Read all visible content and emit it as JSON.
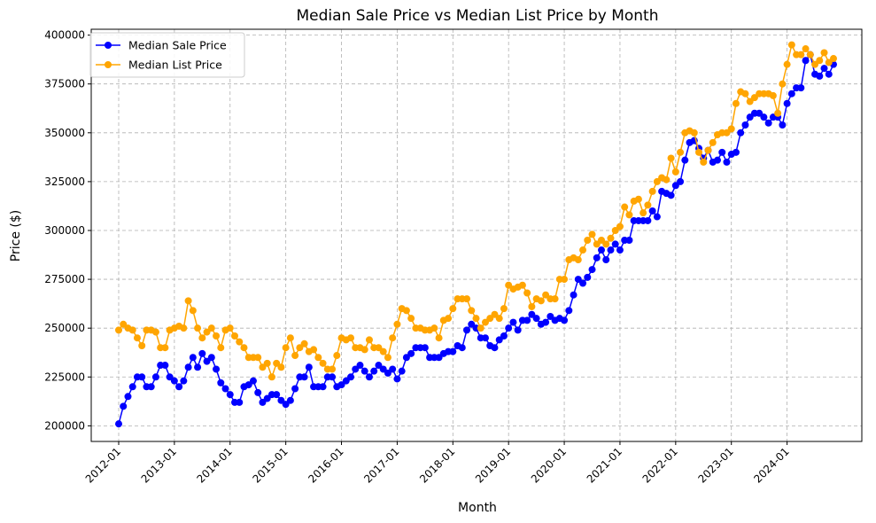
{
  "chart_data": {
    "type": "line",
    "title": "Median Sale Price vs Median List Price by Month",
    "xlabel": "Month",
    "ylabel": "Price ($)",
    "ylim": [
      192000,
      403000
    ],
    "yticks": [
      200000,
      225000,
      250000,
      275000,
      300000,
      325000,
      350000,
      375000,
      400000
    ],
    "xtick_labels": [
      "2012-01",
      "2013-01",
      "2014-01",
      "2015-01",
      "2016-01",
      "2017-01",
      "2018-01",
      "2019-01",
      "2020-01",
      "2021-01",
      "2022-01",
      "2023-01",
      "2024-01"
    ],
    "x_start": "2012-01",
    "grid": true,
    "grid_style": "dashed",
    "legend_position": "top-left",
    "marker": "circle",
    "series": [
      {
        "name": "Median Sale Price",
        "color": "#0000ff",
        "values": [
          201000,
          210000,
          215000,
          220000,
          225000,
          225000,
          220000,
          220000,
          225000,
          231000,
          231000,
          225000,
          223000,
          220000,
          223000,
          230000,
          235000,
          230000,
          237000,
          233000,
          235000,
          229000,
          222000,
          219000,
          216000,
          212000,
          212000,
          220000,
          221000,
          223000,
          217000,
          212000,
          214000,
          216000,
          216000,
          213000,
          211000,
          213000,
          219000,
          225000,
          225000,
          230000,
          220000,
          220000,
          220000,
          225000,
          225000,
          220000,
          221000,
          223000,
          225000,
          229000,
          231000,
          228000,
          225000,
          228000,
          231000,
          229000,
          227000,
          229000,
          224000,
          228000,
          235000,
          237000,
          240000,
          240000,
          240000,
          235000,
          235000,
          235000,
          237000,
          238000,
          238000,
          241000,
          240000,
          249000,
          252000,
          250000,
          245000,
          245000,
          241000,
          240000,
          244000,
          246000,
          250000,
          253000,
          249000,
          254000,
          254000,
          257000,
          255000,
          252000,
          253000,
          256000,
          254000,
          255000,
          254000,
          259000,
          267000,
          275000,
          273000,
          276000,
          280000,
          286000,
          290000,
          285000,
          290000,
          293000,
          290000,
          295000,
          295000,
          305000,
          305000,
          305000,
          305000,
          310000,
          307000,
          320000,
          319000,
          318000,
          323000,
          325000,
          336000,
          345000,
          346000,
          342000,
          337000,
          341000,
          335000,
          336000,
          340000,
          335000,
          339000,
          340000,
          350000,
          354000,
          358000,
          360000,
          360000,
          358000,
          355000,
          358000,
          358000,
          354000,
          365000,
          370000,
          373000,
          373000,
          387000,
          390000,
          380000,
          379000,
          383000,
          380000,
          385000
        ]
      },
      {
        "name": "Median List Price",
        "color": "#ffa500",
        "values": [
          249000,
          252000,
          250000,
          249000,
          245000,
          241000,
          249000,
          249000,
          248000,
          240000,
          240000,
          249000,
          250000,
          251000,
          250000,
          264000,
          259000,
          250000,
          245000,
          248000,
          250000,
          246000,
          240000,
          249000,
          250000,
          246000,
          243000,
          240000,
          235000,
          235000,
          235000,
          230000,
          232000,
          225000,
          232000,
          230000,
          240000,
          245000,
          236000,
          240000,
          242000,
          238000,
          239000,
          235000,
          232000,
          229000,
          229000,
          236000,
          245000,
          244000,
          245000,
          240000,
          240000,
          239000,
          244000,
          240000,
          240000,
          238000,
          235000,
          245000,
          252000,
          260000,
          259000,
          255000,
          250000,
          250000,
          249000,
          249000,
          250000,
          245000,
          254000,
          255000,
          260000,
          265000,
          265000,
          265000,
          259000,
          255000,
          250000,
          253000,
          255000,
          257000,
          255000,
          260000,
          272000,
          270000,
          271000,
          272000,
          268000,
          261000,
          265000,
          264000,
          267000,
          265000,
          265000,
          275000,
          275000,
          285000,
          286000,
          285000,
          290000,
          295000,
          298000,
          293000,
          295000,
          293000,
          296000,
          300000,
          302000,
          312000,
          308000,
          315000,
          316000,
          309000,
          313000,
          320000,
          325000,
          327000,
          326000,
          337000,
          330000,
          340000,
          350000,
          351000,
          350000,
          340000,
          335000,
          341000,
          345000,
          349000,
          350000,
          350000,
          352000,
          365000,
          371000,
          370000,
          366000,
          368000,
          370000,
          370000,
          370000,
          369000,
          360000,
          375000,
          385000,
          395000,
          390000,
          390000,
          393000,
          390000,
          385000,
          387000,
          391000,
          386000,
          388000
        ]
      }
    ]
  }
}
